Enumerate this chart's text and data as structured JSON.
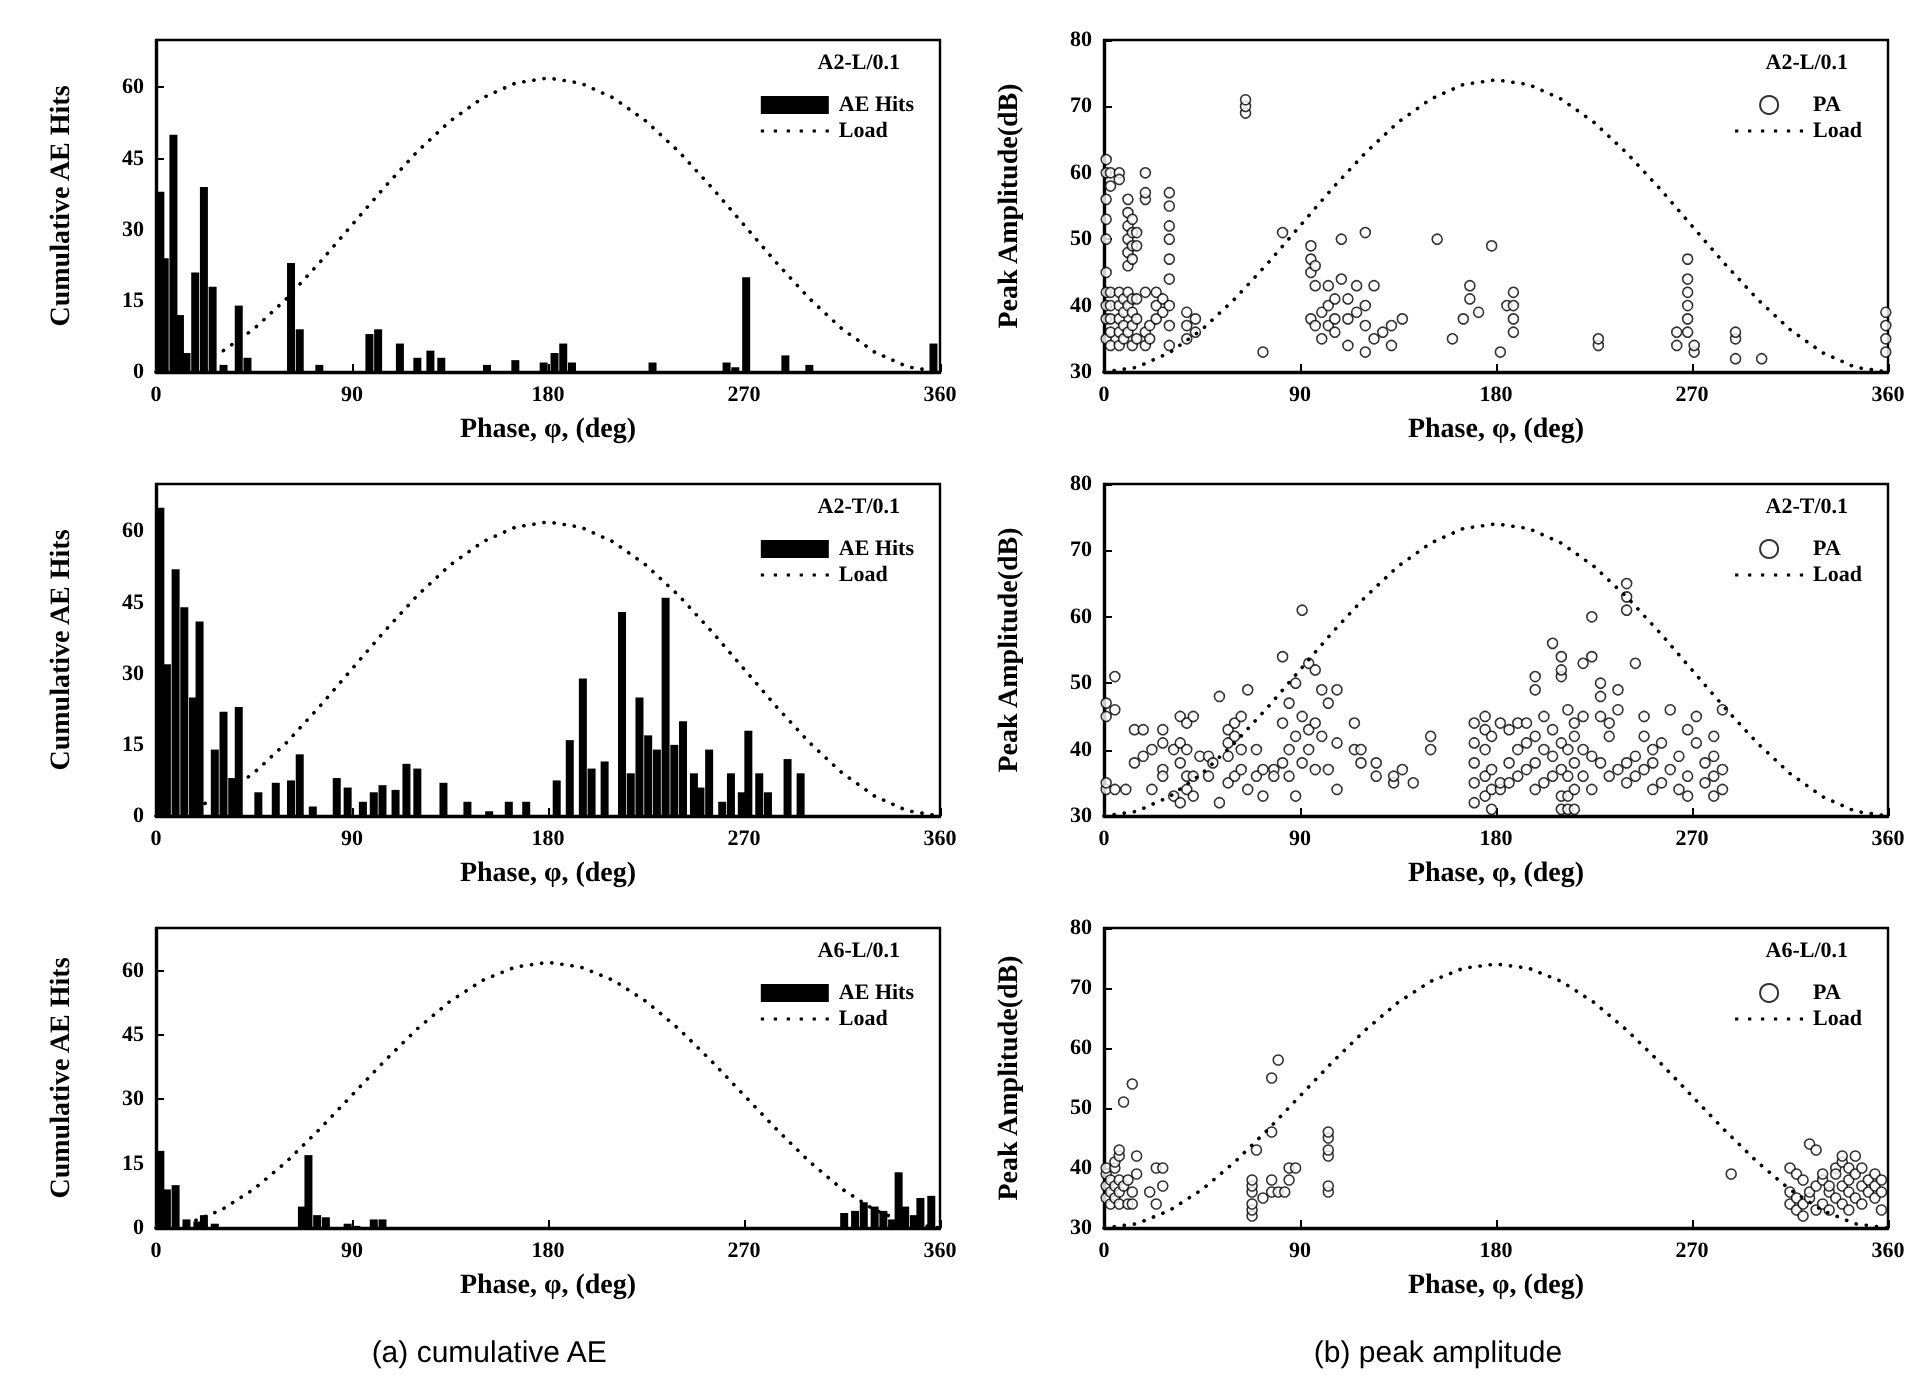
{
  "chart_data": [
    {
      "type": "bar",
      "legend_title": "A2-L/0.1",
      "xlabel": "Phase, φ, (deg)",
      "ylabel": "Cumulative AE Hits",
      "xlim": [
        0,
        360
      ],
      "xticks": [
        0,
        90,
        180,
        270,
        360
      ],
      "ylim": [
        0,
        70
      ],
      "yticks": [
        0,
        15,
        30,
        45,
        60
      ],
      "grid": false,
      "legend": "top right",
      "series": [
        {
          "name": "AE Hits",
          "color": "#000000",
          "x": [
            2,
            4,
            8,
            11,
            14,
            18,
            22,
            26,
            31,
            38,
            42,
            62,
            66,
            75,
            98,
            102,
            112,
            120,
            126,
            131,
            152,
            165,
            178,
            183,
            187,
            191,
            228,
            262,
            266,
            271,
            289,
            300,
            357
          ],
          "values": [
            38,
            24,
            50,
            12,
            4,
            21,
            39,
            18,
            1.5,
            14,
            3,
            23,
            9,
            1.5,
            8,
            9,
            6,
            3,
            4.5,
            3,
            1.5,
            2.5,
            2,
            4,
            6,
            2,
            2,
            2,
            1,
            20,
            3.5,
            1.5,
            6
          ]
        },
        {
          "name": "Load",
          "type": "line",
          "color": "#000000",
          "line_style": "dotted",
          "marker": "none",
          "x": [
            0,
            15,
            30,
            45,
            60,
            75,
            90,
            105,
            120,
            135,
            150,
            165,
            180,
            195,
            210,
            225,
            240,
            255,
            270,
            285,
            300,
            315,
            330,
            345,
            360
          ],
          "values": [
            0,
            1.1,
            4.2,
            9.1,
            15.5,
            23,
            31,
            39,
            46.5,
            52.9,
            57.8,
            60.9,
            62,
            60.9,
            57.8,
            52.9,
            46.5,
            39,
            31,
            23,
            15.5,
            9.1,
            4.2,
            1.1,
            0
          ]
        }
      ]
    },
    {
      "type": "scatter",
      "legend_title": "A2-L/0.1",
      "xlabel": "Phase, φ, (deg)",
      "ylabel": "Peak Amplitude(dB)",
      "xlim": [
        0,
        360
      ],
      "xticks": [
        0,
        90,
        180,
        270,
        360
      ],
      "ylim": [
        30,
        80
      ],
      "yticks": [
        30,
        40,
        50,
        60,
        70,
        80
      ],
      "grid": false,
      "legend": "top right",
      "series": [
        {
          "name": "PA",
          "color": "#000000",
          "marker": "circle",
          "x": [
            1,
            1,
            1,
            1,
            1,
            1,
            1,
            1,
            1,
            1,
            3,
            3,
            3,
            3,
            3,
            3,
            3,
            7,
            7,
            7,
            7,
            7,
            7,
            7,
            9,
            9,
            9,
            9,
            11,
            11,
            11,
            11,
            11,
            11,
            11,
            11,
            11,
            13,
            13,
            13,
            13,
            13,
            13,
            13,
            13,
            15,
            15,
            15,
            15,
            15,
            19,
            19,
            19,
            19,
            19,
            19,
            21,
            21,
            24,
            24,
            24,
            27,
            27,
            30,
            30,
            30,
            30,
            30,
            30,
            30,
            30,
            30,
            38,
            38,
            38,
            42,
            42,
            65,
            65,
            65,
            73,
            82,
            95,
            95,
            95,
            95,
            97,
            97,
            97,
            100,
            100,
            103,
            103,
            103,
            106,
            106,
            106,
            109,
            109,
            112,
            112,
            112,
            116,
            116,
            120,
            120,
            120,
            120,
            124,
            124,
            128,
            132,
            132,
            137,
            153,
            160,
            165,
            168,
            168,
            172,
            178,
            182,
            185,
            188,
            188,
            188,
            188,
            227,
            227,
            263,
            263,
            268,
            268,
            268,
            268,
            268,
            268,
            271,
            271,
            290,
            290,
            290,
            302,
            359,
            359,
            359,
            359
          ],
          "values": [
            35,
            38,
            40,
            42,
            45,
            50,
            53,
            56,
            60,
            62,
            34,
            36,
            38,
            40,
            42,
            58,
            60,
            34,
            36,
            38,
            40,
            42,
            60,
            59,
            35,
            37,
            39,
            41,
            36,
            40,
            42,
            46,
            48,
            50,
            52,
            54,
            56,
            34,
            37,
            39,
            41,
            47,
            49,
            51,
            53,
            35,
            38,
            41,
            49,
            51,
            34,
            36,
            42,
            56,
            57,
            60,
            35,
            37,
            38,
            40,
            42,
            41,
            39,
            34,
            37,
            40,
            44,
            47,
            50,
            52,
            55,
            57,
            35,
            37,
            39,
            36,
            38,
            69,
            70,
            71,
            33,
            51,
            38,
            45,
            47,
            49,
            37,
            43,
            46,
            35,
            39,
            37,
            40,
            43,
            36,
            38,
            41,
            44,
            50,
            34,
            38,
            41,
            39,
            43,
            33,
            37,
            40,
            51,
            35,
            43,
            36,
            34,
            37,
            38,
            50,
            35,
            38,
            41,
            43,
            39,
            49,
            33,
            40,
            36,
            38,
            40,
            42,
            34,
            35,
            34,
            36,
            36,
            38,
            40,
            42,
            44,
            47,
            33,
            34,
            32,
            35,
            36,
            32,
            33,
            35,
            37,
            39
          ]
        },
        {
          "name": "Load",
          "type": "line",
          "color": "#000000",
          "line_style": "dotted",
          "marker": "none",
          "x": [
            0,
            15,
            30,
            45,
            60,
            75,
            90,
            105,
            120,
            135,
            150,
            165,
            180,
            195,
            210,
            225,
            240,
            255,
            270,
            285,
            300,
            315,
            330,
            345,
            360
          ],
          "values": [
            30,
            30.7,
            32.9,
            36.4,
            41,
            46.3,
            52,
            57.7,
            63,
            67.6,
            71.1,
            73.3,
            74,
            73.3,
            71.1,
            67.6,
            63,
            57.7,
            52,
            46.3,
            41,
            36.4,
            32.9,
            30.7,
            30
          ]
        }
      ]
    },
    {
      "type": "bar",
      "legend_title": "A2-T/0.1",
      "xlabel": "Phase, φ, (deg)",
      "ylabel": "Cumulative AE Hits",
      "xlim": [
        0,
        360
      ],
      "xticks": [
        0,
        90,
        180,
        270,
        360
      ],
      "ylim": [
        0,
        70
      ],
      "yticks": [
        0,
        15,
        30,
        45,
        60
      ],
      "grid": false,
      "legend": "top right",
      "series": [
        {
          "name": "AE Hits",
          "color": "#000000",
          "x": [
            2,
            5,
            9,
            13,
            17,
            20,
            27,
            31,
            35,
            38,
            47,
            55,
            62,
            66,
            72,
            83,
            88,
            95,
            100,
            104,
            110,
            115,
            120,
            132,
            143,
            153,
            162,
            170,
            184,
            190,
            196,
            200,
            206,
            214,
            218,
            222,
            226,
            230,
            234,
            238,
            242,
            247,
            250,
            254,
            260,
            264,
            269,
            272,
            277,
            281,
            290,
            296
          ],
          "values": [
            65,
            32,
            52,
            44,
            25,
            41,
            14,
            22,
            8,
            23,
            5,
            7,
            7.5,
            13,
            2,
            8,
            6,
            3,
            5,
            6.5,
            5.5,
            11,
            10,
            7,
            3,
            1,
            3,
            3,
            7.5,
            16,
            29,
            10,
            11.5,
            43,
            9,
            25,
            17,
            14,
            46,
            15,
            20,
            9,
            6,
            14,
            3,
            9,
            5,
            18,
            9,
            5,
            12,
            9
          ]
        },
        {
          "name": "Load",
          "type": "line",
          "color": "#000000",
          "line_style": "dotted",
          "marker": "none",
          "x": [
            0,
            15,
            30,
            45,
            60,
            75,
            90,
            105,
            120,
            135,
            150,
            165,
            180,
            195,
            210,
            225,
            240,
            255,
            270,
            285,
            300,
            315,
            330,
            345,
            360
          ],
          "values": [
            0,
            1.1,
            4.2,
            9.1,
            15.5,
            23,
            31,
            39,
            46.5,
            52.9,
            57.8,
            60.9,
            62,
            60.9,
            57.8,
            52.9,
            46.5,
            39,
            31,
            23,
            15.5,
            9.1,
            4.2,
            1.1,
            0
          ]
        }
      ]
    },
    {
      "type": "scatter",
      "legend_title": "A2-T/0.1",
      "xlabel": "Phase, φ, (deg)",
      "ylabel": "Peak Amplitude(dB)",
      "xlim": [
        0,
        360
      ],
      "xticks": [
        0,
        90,
        180,
        270,
        360
      ],
      "ylim": [
        30,
        80
      ],
      "yticks": [
        30,
        40,
        50,
        60,
        70,
        80
      ],
      "grid": false,
      "legend": "top right",
      "series": [
        {
          "name": "PA",
          "color": "#000000",
          "marker": "circle",
          "x": [
            1,
            1,
            1,
            1,
            5,
            5,
            5,
            10,
            14,
            14,
            18,
            18,
            22,
            22,
            27,
            27,
            27,
            27,
            32,
            32,
            35,
            35,
            35,
            35,
            38,
            38,
            38,
            38,
            41,
            41,
            41,
            44,
            48,
            48,
            50,
            53,
            53,
            57,
            57,
            57,
            57,
            60,
            60,
            60,
            63,
            63,
            63,
            66,
            66,
            70,
            70,
            73,
            73,
            78,
            78,
            82,
            82,
            82,
            85,
            85,
            85,
            88,
            88,
            88,
            91,
            91,
            91,
            94,
            94,
            94,
            97,
            97,
            97,
            100,
            100,
            103,
            103,
            107,
            107,
            107,
            115,
            115,
            118,
            118,
            125,
            125,
            133,
            133,
            137,
            142,
            150,
            150,
            170,
            170,
            170,
            170,
            170,
            175,
            175,
            175,
            175,
            175,
            178,
            178,
            178,
            178,
            182,
            182,
            182,
            186,
            186,
            186,
            190,
            190,
            190,
            194,
            194,
            194,
            198,
            198,
            198,
            198,
            198,
            202,
            202,
            202,
            206,
            206,
            206,
            206,
            210,
            210,
            210,
            210,
            210,
            210,
            210,
            213,
            213,
            213,
            213,
            213,
            216,
            216,
            216,
            216,
            216,
            220,
            220,
            220,
            220,
            224,
            224,
            224,
            224,
            228,
            228,
            228,
            228,
            232,
            232,
            232,
            236,
            236,
            236,
            240,
            240,
            240,
            240,
            240,
            244,
            244,
            244,
            248,
            248,
            248,
            252,
            252,
            252,
            256,
            256,
            260,
            260,
            264,
            264,
            268,
            268,
            268,
            272,
            272,
            276,
            276,
            280,
            280,
            280,
            280,
            284,
            284,
            284
          ],
          "values": [
            34,
            35,
            45,
            47,
            34,
            51,
            46,
            34,
            43,
            38,
            39,
            43,
            34,
            40,
            41,
            43,
            37,
            36,
            40,
            33,
            32,
            38,
            41,
            45,
            34,
            44,
            36,
            40,
            33,
            36,
            45,
            39,
            36,
            39,
            38,
            32,
            48,
            41,
            43,
            35,
            39,
            44,
            36,
            42,
            37,
            40,
            45,
            49,
            34,
            36,
            40,
            33,
            37,
            37,
            36,
            38,
            54,
            44,
            40,
            36,
            47,
            42,
            33,
            50,
            61,
            45,
            38,
            53,
            40,
            43,
            52,
            44,
            37,
            49,
            42,
            47,
            37,
            49,
            41,
            34,
            40,
            44,
            38,
            40,
            36,
            38,
            35,
            36,
            37,
            35,
            40,
            42,
            32,
            35,
            38,
            41,
            44,
            33,
            36,
            40,
            43,
            45,
            31,
            34,
            37,
            42,
            34,
            35,
            44,
            35,
            38,
            43,
            36,
            40,
            44,
            37,
            41,
            44,
            34,
            38,
            42,
            49,
            51,
            35,
            40,
            45,
            36,
            39,
            56,
            43,
            31,
            33,
            37,
            41,
            51,
            52,
            54,
            31,
            33,
            36,
            40,
            46,
            31,
            34,
            38,
            42,
            44,
            36,
            40,
            45,
            53,
            39,
            60,
            54,
            34,
            38,
            45,
            50,
            48,
            42,
            36,
            44,
            37,
            49,
            46,
            35,
            38,
            65,
            63,
            61,
            39,
            53,
            36,
            37,
            42,
            45,
            34,
            38,
            40,
            35,
            41,
            37,
            46,
            34,
            39,
            33,
            36,
            43,
            41,
            45,
            35,
            38,
            33,
            36,
            39,
            42,
            34,
            37,
            46
          ]
        },
        {
          "name": "Load",
          "type": "line",
          "color": "#000000",
          "line_style": "dotted",
          "marker": "none",
          "x": [
            0,
            15,
            30,
            45,
            60,
            75,
            90,
            105,
            120,
            135,
            150,
            165,
            180,
            195,
            210,
            225,
            240,
            255,
            270,
            285,
            300,
            315,
            330,
            345,
            360
          ],
          "values": [
            30,
            30.7,
            32.9,
            36.4,
            41,
            46.3,
            52,
            57.7,
            63,
            67.6,
            71.1,
            73.3,
            74,
            73.3,
            71.1,
            67.6,
            63,
            57.7,
            52,
            46.3,
            41,
            36.4,
            32.9,
            30.7,
            30
          ]
        }
      ]
    },
    {
      "type": "bar",
      "legend_title": "A6-L/0.1",
      "xlabel": "Phase, φ, (deg)",
      "ylabel": "Cumulative AE Hits",
      "xlim": [
        0,
        360
      ],
      "xticks": [
        0,
        90,
        180,
        270,
        360
      ],
      "ylim": [
        0,
        70
      ],
      "yticks": [
        0,
        15,
        30,
        45,
        60
      ],
      "grid": false,
      "legend": "top right",
      "annotations": [
        "(a) cumulative AE"
      ],
      "series": [
        {
          "name": "AE Hits",
          "color": "#000000",
          "x": [
            2,
            5,
            9,
            14,
            19,
            22,
            27,
            67,
            70,
            74,
            78,
            88,
            92,
            100,
            104,
            316,
            321,
            325,
            330,
            334,
            338,
            341,
            344,
            348,
            351,
            356
          ],
          "values": [
            18,
            9,
            10,
            2,
            1.5,
            3,
            1,
            5,
            17,
            3,
            2.5,
            1,
            0.5,
            2,
            2,
            3.5,
            4,
            6,
            5,
            4,
            2,
            13,
            5,
            3,
            7,
            7.5
          ]
        },
        {
          "name": "Load",
          "type": "line",
          "color": "#000000",
          "line_style": "dotted",
          "marker": "none",
          "x": [
            0,
            15,
            30,
            45,
            60,
            75,
            90,
            105,
            120,
            135,
            150,
            165,
            180,
            195,
            210,
            225,
            240,
            255,
            270,
            285,
            300,
            315,
            330,
            345,
            360
          ],
          "values": [
            0,
            1.1,
            4.2,
            9.1,
            15.5,
            23,
            31,
            39,
            46.5,
            52.9,
            57.8,
            60.9,
            62,
            60.9,
            57.8,
            52.9,
            46.5,
            39,
            31,
            23,
            15.5,
            9.1,
            4.2,
            1.1,
            0
          ]
        }
      ]
    },
    {
      "type": "scatter",
      "legend_title": "A6-L/0.1",
      "xlabel": "Phase, φ, (deg)",
      "ylabel": "Peak Amplitude(dB)",
      "xlim": [
        0,
        360
      ],
      "xticks": [
        0,
        90,
        180,
        270,
        360
      ],
      "ylim": [
        30,
        80
      ],
      "yticks": [
        30,
        40,
        50,
        60,
        70,
        80
      ],
      "grid": false,
      "legend": "top right",
      "annotations": [
        "(b) peak amplitude"
      ],
      "series": [
        {
          "name": "PA",
          "color": "#000000",
          "marker": "circle",
          "x": [
            1,
            1,
            1,
            1,
            3,
            3,
            3,
            5,
            5,
            5,
            5,
            7,
            7,
            7,
            7,
            7,
            9,
            9,
            11,
            11,
            13,
            13,
            13,
            15,
            15,
            21,
            24,
            24,
            27,
            27,
            68,
            68,
            68,
            68,
            68,
            68,
            70,
            73,
            77,
            77,
            77,
            77,
            80,
            80,
            83,
            85,
            85,
            88,
            103,
            103,
            103,
            103,
            103,
            103,
            288,
            315,
            315,
            315,
            318,
            318,
            318,
            321,
            321,
            321,
            324,
            324,
            324,
            327,
            327,
            327,
            330,
            330,
            330,
            333,
            333,
            333,
            336,
            336,
            336,
            339,
            339,
            339,
            339,
            342,
            342,
            342,
            342,
            345,
            345,
            345,
            348,
            348,
            348,
            351,
            351,
            354,
            354,
            354,
            357,
            357,
            357
          ],
          "values": [
            35,
            37,
            39,
            40,
            34,
            36,
            38,
            35,
            37,
            40,
            41,
            34,
            36,
            38,
            42,
            43,
            37,
            51,
            34,
            38,
            54,
            34,
            36,
            39,
            42,
            36,
            40,
            34,
            37,
            40,
            32,
            33,
            34,
            36,
            37,
            38,
            43,
            35,
            36,
            38,
            46,
            55,
            58,
            36,
            36,
            38,
            40,
            40,
            36,
            37,
            42,
            43,
            45,
            46,
            39,
            34,
            36,
            40,
            33,
            35,
            39,
            32,
            34,
            38,
            35,
            44,
            36,
            37,
            43,
            33,
            34,
            38,
            39,
            33,
            36,
            37,
            35,
            40,
            39,
            34,
            37,
            41,
            42,
            33,
            36,
            38,
            40,
            35,
            39,
            42,
            34,
            37,
            40,
            36,
            38,
            35,
            37,
            39,
            33,
            36,
            38
          ]
        },
        {
          "name": "Load",
          "type": "line",
          "color": "#000000",
          "line_style": "dotted",
          "marker": "none",
          "x": [
            0,
            15,
            30,
            45,
            60,
            75,
            90,
            105,
            120,
            135,
            150,
            165,
            180,
            195,
            210,
            225,
            240,
            255,
            270,
            285,
            300,
            315,
            330,
            345,
            360
          ],
          "values": [
            30,
            30.7,
            32.9,
            36.4,
            41,
            46.3,
            52,
            57.7,
            63,
            67.6,
            71.1,
            73.3,
            74,
            73.3,
            71.1,
            67.6,
            63,
            57.7,
            52,
            46.3,
            41,
            36.4,
            32.9,
            30.7,
            30
          ]
        }
      ]
    }
  ]
}
